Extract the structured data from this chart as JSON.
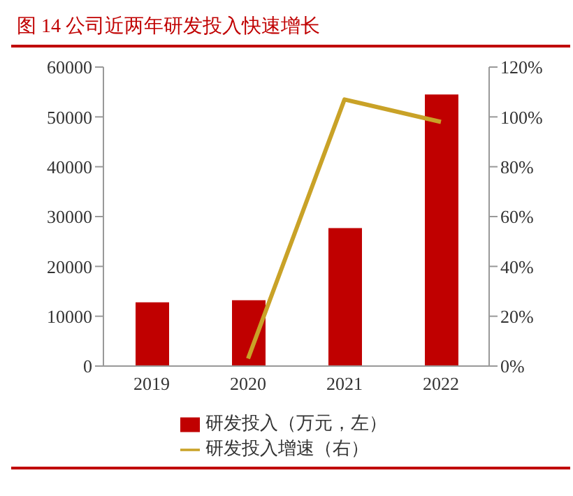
{
  "chart_data": {
    "type": "bar",
    "title": "图 14 公司近两年研发投入快速增长",
    "categories": [
      "2019",
      "2020",
      "2021",
      "2022"
    ],
    "series": [
      {
        "name": "研发投入（万元，左）",
        "color": "#c00000",
        "values": [
          12800,
          13200,
          27700,
          54500
        ]
      },
      {
        "name": "研发投入增速（右）",
        "type": "line",
        "axis": "y2",
        "color": "#c9a227",
        "values": [
          null,
          3,
          107,
          98
        ]
      }
    ],
    "ylim": [
      0,
      60000
    ],
    "yticks": [
      0,
      10000,
      20000,
      30000,
      40000,
      50000,
      60000
    ],
    "y2lim": [
      0,
      120
    ],
    "y2ticks": [
      {
        "value": 0,
        "label": "0%"
      },
      {
        "value": 20,
        "label": "20%"
      },
      {
        "value": 40,
        "label": "40%"
      },
      {
        "value": 60,
        "label": "60%"
      },
      {
        "value": 80,
        "label": "80%"
      },
      {
        "value": 100,
        "label": "100%"
      },
      {
        "value": 120,
        "label": "120%"
      }
    ],
    "grid": false,
    "legend": "bottom",
    "marker": "none",
    "line_style": "solid"
  }
}
